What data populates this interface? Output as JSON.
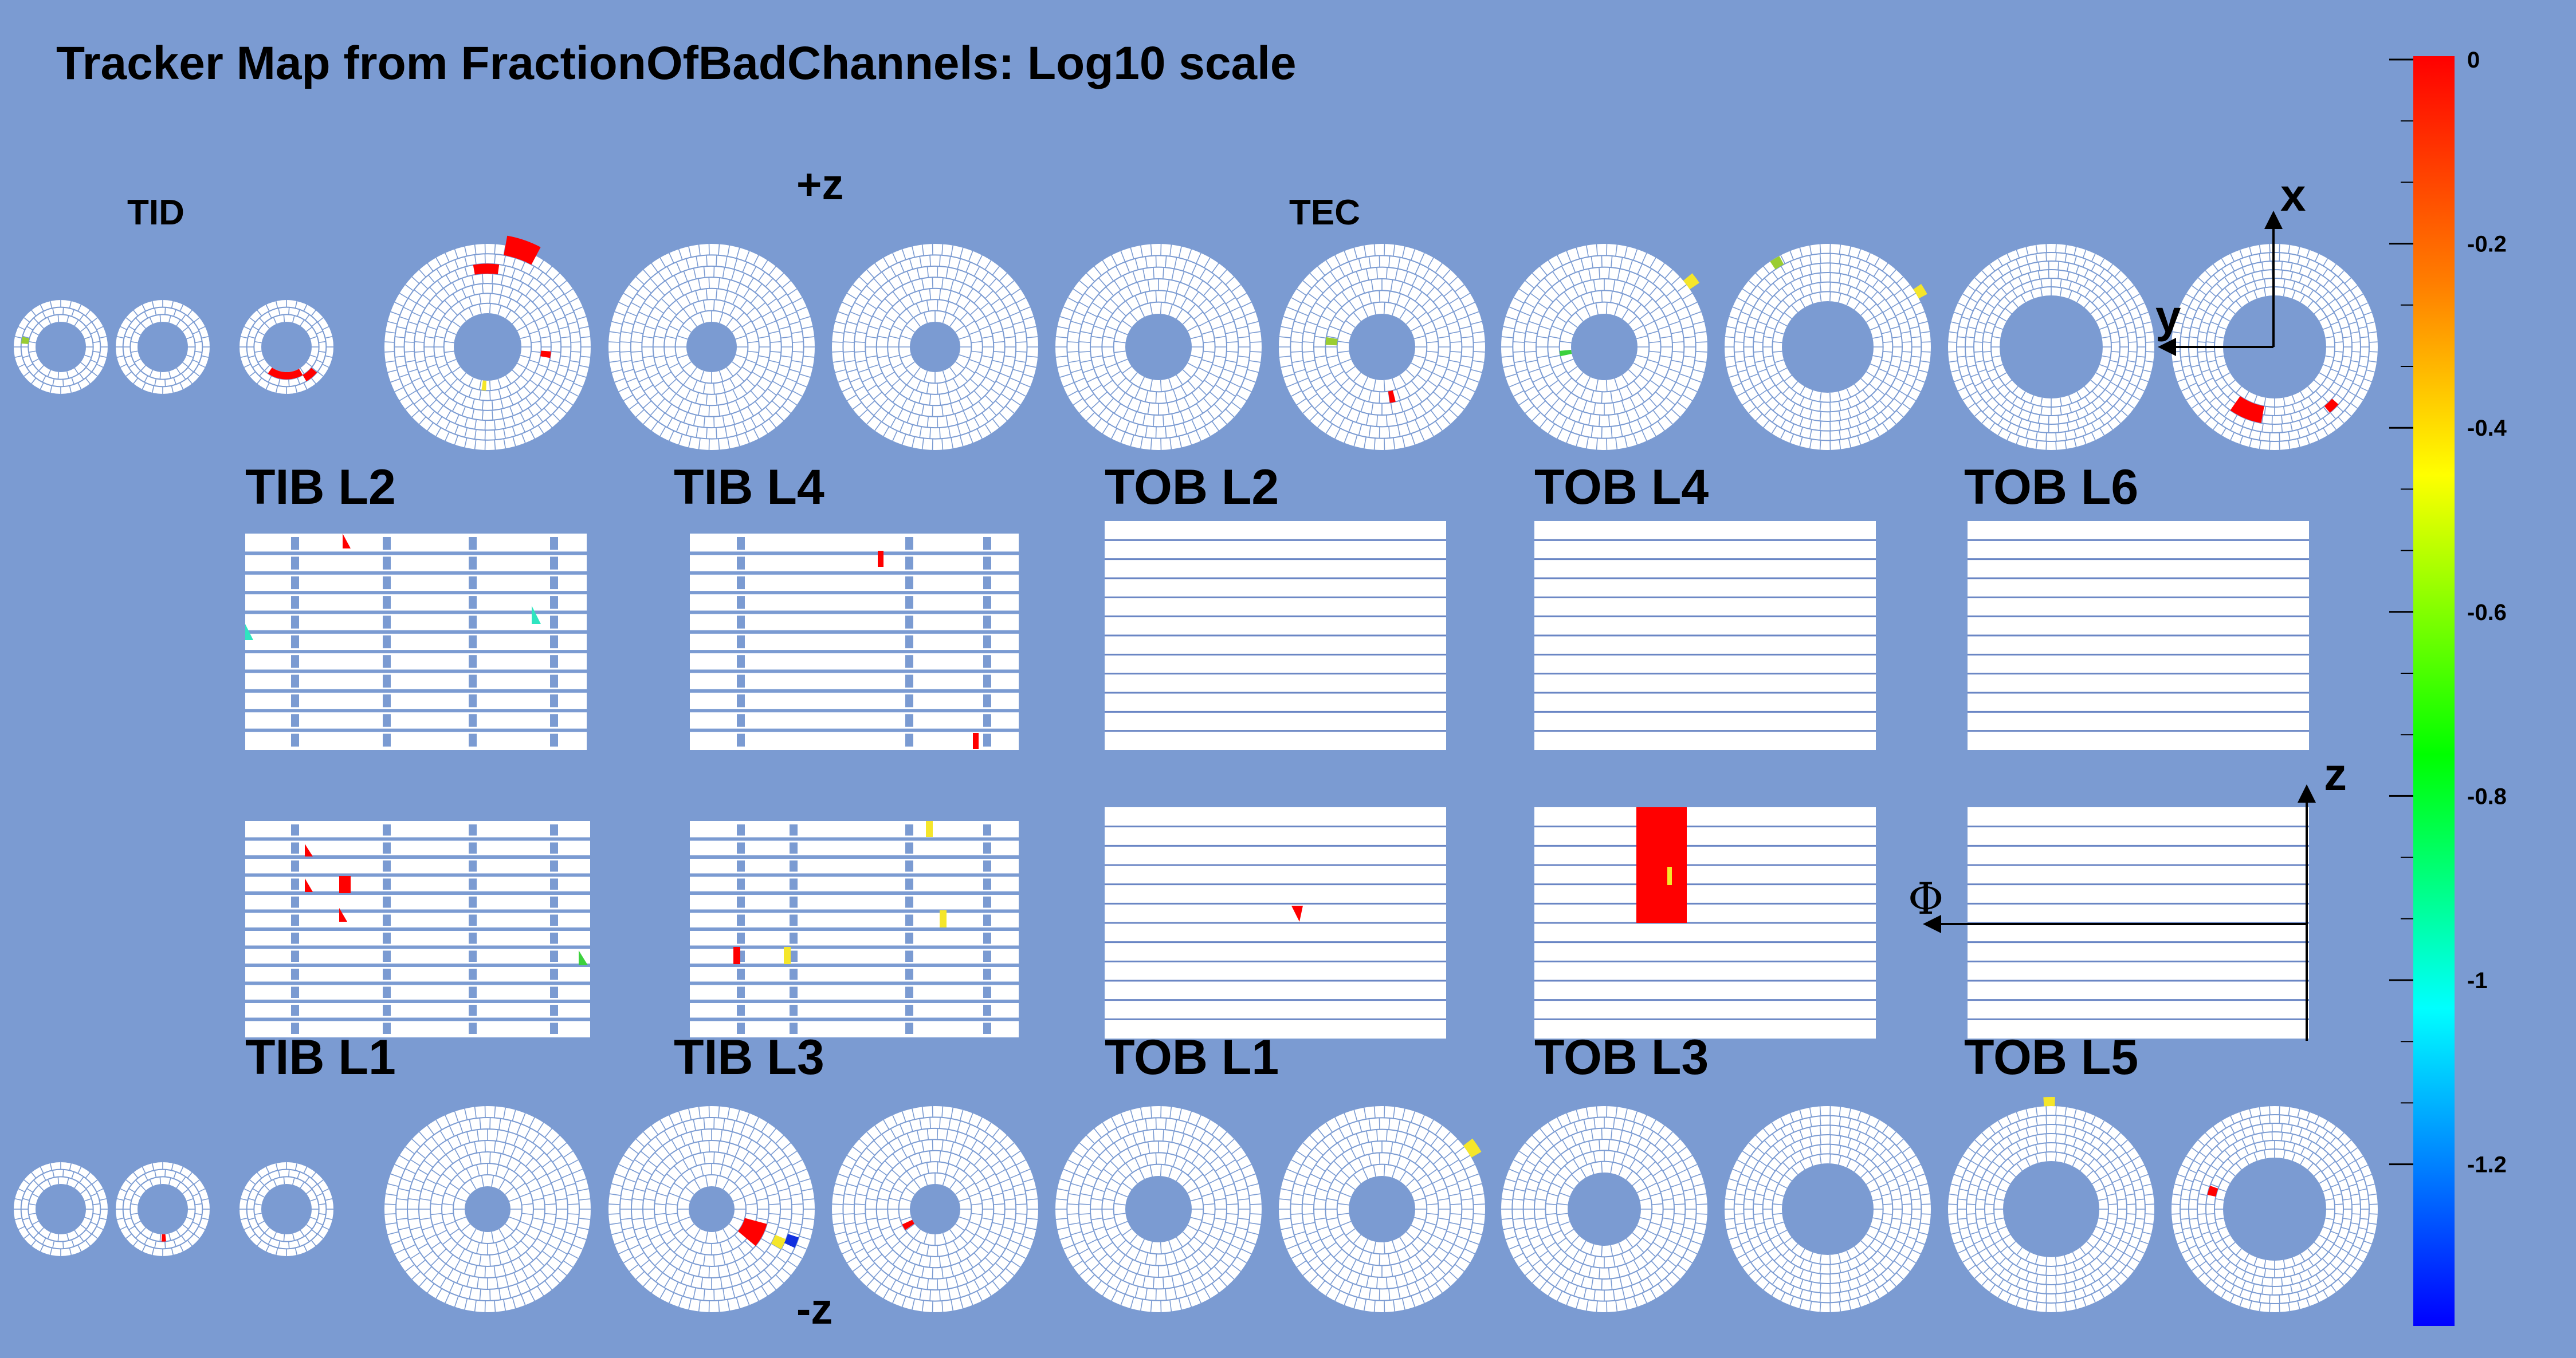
{
  "title": "Tracker Map from  FractionOfBadChannels: Log10 scale",
  "labels": {
    "tid": "TID",
    "tec": "TEC",
    "plus_z": "+z",
    "minus_z": "-z",
    "axis_x": "x",
    "axis_y": "y",
    "axis_z": "z",
    "axis_phi": "Φ"
  },
  "barrels_top": [
    "TIB L2",
    "TIB L4",
    "TOB L2",
    "TOB L4",
    "TOB L6"
  ],
  "barrels_bottom": [
    "TIB L1",
    "TIB L3",
    "TOB L1",
    "TOB L3",
    "TOB L5"
  ],
  "colorbar": {
    "ticks": [
      "0",
      "-0.2",
      "-0.4",
      "-0.6",
      "-0.8",
      "-1",
      "-1.2"
    ],
    "colors": [
      "#ff0000",
      "#ff7f00",
      "#ffff00",
      "#00ff00",
      "#00ffff",
      "#0000ff"
    ]
  },
  "marker_colors": {
    "red": "#ff0000",
    "yellow": "#f5e62a",
    "lime": "#9acd32",
    "green": "#3cd13c",
    "cyan": "#2fe5c0",
    "blue": "#1030e0"
  }
}
